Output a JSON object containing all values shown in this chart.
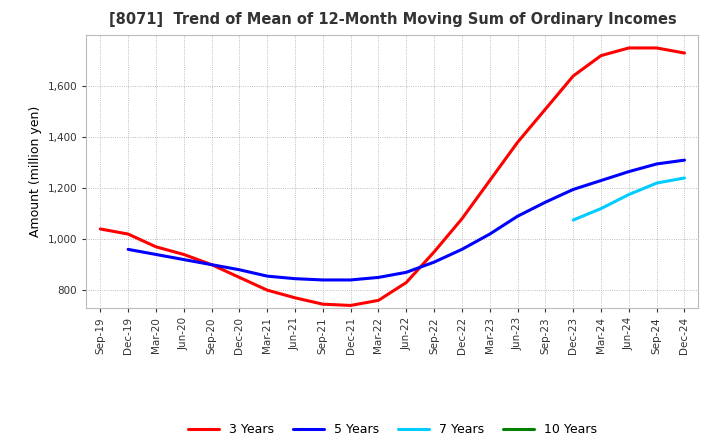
{
  "title": "[8071]  Trend of Mean of 12-Month Moving Sum of Ordinary Incomes",
  "ylabel": "Amount (million yen)",
  "ylim": [
    730,
    1800
  ],
  "yticks": [
    800,
    1000,
    1200,
    1400,
    1600
  ],
  "background_color": "#ffffff",
  "grid_color": "#aaaaaa",
  "legend": [
    "3 Years",
    "5 Years",
    "7 Years",
    "10 Years"
  ],
  "line_colors": [
    "#ff0000",
    "#0000ff",
    "#00ccff",
    "#008000"
  ],
  "x_labels": [
    "Sep-19",
    "Dec-19",
    "Mar-20",
    "Jun-20",
    "Sep-20",
    "Dec-20",
    "Mar-21",
    "Jun-21",
    "Sep-21",
    "Dec-21",
    "Mar-22",
    "Jun-22",
    "Sep-22",
    "Dec-22",
    "Mar-23",
    "Jun-23",
    "Sep-23",
    "Dec-23",
    "Mar-24",
    "Jun-24",
    "Sep-24",
    "Dec-24"
  ],
  "series_3y": [
    1040,
    1020,
    970,
    940,
    900,
    850,
    800,
    770,
    745,
    740,
    760,
    830,
    950,
    1080,
    1230,
    1380,
    1510,
    1640,
    1720,
    1750,
    1750,
    1730
  ],
  "series_5y": [
    null,
    960,
    940,
    920,
    900,
    880,
    855,
    845,
    840,
    840,
    850,
    870,
    910,
    960,
    1020,
    1090,
    1145,
    1195,
    1230,
    1265,
    1295,
    1310
  ],
  "series_7y": [
    null,
    null,
    null,
    null,
    null,
    null,
    null,
    null,
    null,
    null,
    null,
    null,
    null,
    null,
    null,
    null,
    null,
    1075,
    1120,
    1175,
    1220,
    1240
  ],
  "series_10y": [
    null,
    null,
    null,
    null,
    null,
    null,
    null,
    null,
    null,
    null,
    null,
    null,
    null,
    null,
    null,
    null,
    null,
    null,
    null,
    null,
    null,
    null
  ]
}
